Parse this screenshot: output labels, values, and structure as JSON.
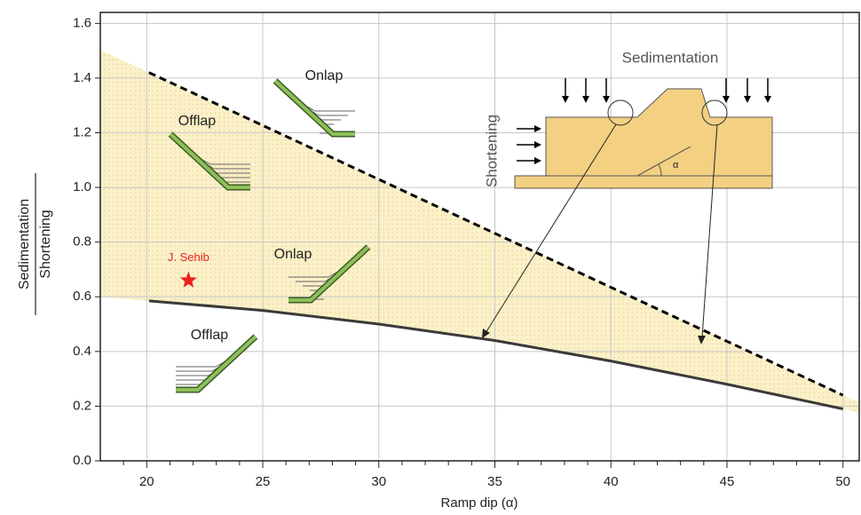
{
  "chart_data": {
    "type": "line",
    "xlabel": "Ramp dip (α)",
    "ylabel_numerator": "Sedimentation",
    "ylabel_denominator": "Shortening",
    "xlim": [
      18,
      50.7
    ],
    "ylim": [
      0,
      1.64
    ],
    "xticks": [
      20,
      25,
      30,
      35,
      40,
      45,
      50
    ],
    "xminorticks": [
      19,
      21,
      22,
      23,
      24,
      26,
      27,
      28,
      29,
      31,
      32,
      33,
      34,
      36,
      37,
      38,
      39,
      41,
      42,
      43,
      44,
      46,
      47,
      48,
      49
    ],
    "yticks": [
      {
        "value": 0,
        "label": "0.0"
      },
      0.2,
      0.4,
      0.6,
      0.8,
      {
        "value": 1,
        "label": "1.0"
      },
      1.2,
      1.4,
      1.6
    ],
    "grid": true,
    "series": [
      {
        "color": "#000000",
        "style": "dashed",
        "x": [
          20.1,
          50
        ],
        "values": [
          1.42,
          0.24
        ]
      },
      {
        "color": "#3a3a3a",
        "style": "solid",
        "x": [
          20.1,
          25,
          30,
          35,
          40,
          45,
          50
        ],
        "values": [
          0.585,
          0.55,
          0.5,
          0.44,
          0.365,
          0.28,
          0.19
        ]
      }
    ],
    "fill_color": "#fbf0c8",
    "points": [
      {
        "name": "J. Sehib",
        "x": 21.8,
        "y": 0.66,
        "color": "#e8231f"
      }
    ],
    "annotations": [
      "Onlap",
      "Offlap",
      "Onlap",
      "Offlap"
    ],
    "inset": {
      "title": "Sedimentation",
      "side_label": "Shortening",
      "angle_label": "α"
    }
  }
}
